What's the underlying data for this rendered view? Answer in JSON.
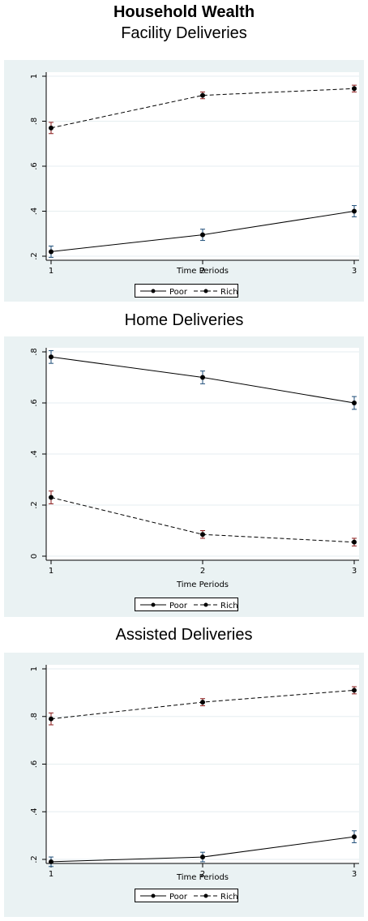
{
  "main_title": "Household Wealth",
  "chart_data": [
    {
      "type": "line",
      "title": "Facility Deliveries",
      "xlabel": "Time Periods",
      "ylabel": "",
      "x": [
        1,
        2,
        3
      ],
      "xlim": [
        1,
        3
      ],
      "ylim": [
        0.2,
        1.0
      ],
      "yticks": [
        0.2,
        0.4,
        0.6,
        0.8,
        1.0
      ],
      "ytick_labels": [
        ".2",
        ".4",
        ".6",
        ".8",
        "1"
      ],
      "xtick_labels": [
        "1",
        "2",
        "3"
      ],
      "grid": true,
      "legend_position": "bottom",
      "series": [
        {
          "name": "Poor",
          "style": "solid",
          "values": [
            0.22,
            0.295,
            0.4
          ],
          "ci": [
            [
              0.195,
              0.245
            ],
            [
              0.27,
              0.32
            ],
            [
              0.375,
              0.425
            ]
          ]
        },
        {
          "name": "Rich",
          "style": "dashed",
          "values": [
            0.77,
            0.915,
            0.945
          ],
          "ci": [
            [
              0.745,
              0.795
            ],
            [
              0.9,
              0.93
            ],
            [
              0.93,
              0.96
            ]
          ]
        }
      ]
    },
    {
      "type": "line",
      "title": "Home Deliveries",
      "xlabel": "Time Periods",
      "ylabel": "",
      "x": [
        1,
        2,
        3
      ],
      "xlim": [
        1,
        3
      ],
      "ylim": [
        0.0,
        0.8
      ],
      "yticks": [
        0.0,
        0.2,
        0.4,
        0.6,
        0.8
      ],
      "ytick_labels": [
        "0",
        ".2",
        ".4",
        ".6",
        ".8"
      ],
      "xtick_labels": [
        "1",
        "2",
        "3"
      ],
      "grid": true,
      "legend_position": "bottom",
      "series": [
        {
          "name": "Poor",
          "style": "solid",
          "values": [
            0.78,
            0.7,
            0.6
          ],
          "ci": [
            [
              0.755,
              0.805
            ],
            [
              0.675,
              0.725
            ],
            [
              0.575,
              0.625
            ]
          ]
        },
        {
          "name": "Rich",
          "style": "dashed",
          "values": [
            0.23,
            0.085,
            0.055
          ],
          "ci": [
            [
              0.205,
              0.255
            ],
            [
              0.07,
              0.1
            ],
            [
              0.04,
              0.07
            ]
          ]
        }
      ]
    },
    {
      "type": "line",
      "title": "Assisted Deliveries",
      "xlabel": "Time Periods",
      "ylabel": "",
      "x": [
        1,
        2,
        3
      ],
      "xlim": [
        1,
        3
      ],
      "ylim": [
        0.2,
        1.0
      ],
      "yticks": [
        0.2,
        0.4,
        0.6,
        0.8,
        1.0
      ],
      "ytick_labels": [
        ".2",
        ".4",
        ".6",
        ".8",
        "1"
      ],
      "xtick_labels": [
        "1",
        "2",
        "3"
      ],
      "grid": true,
      "legend_position": "bottom",
      "series": [
        {
          "name": "Poor",
          "style": "solid",
          "values": [
            0.19,
            0.21,
            0.295
          ],
          "ci": [
            [
              0.17,
              0.21
            ],
            [
              0.19,
              0.23
            ],
            [
              0.27,
              0.32
            ]
          ]
        },
        {
          "name": "Rich",
          "style": "dashed",
          "values": [
            0.79,
            0.86,
            0.91
          ],
          "ci": [
            [
              0.765,
              0.815
            ],
            [
              0.845,
              0.875
            ],
            [
              0.895,
              0.925
            ]
          ]
        }
      ]
    }
  ],
  "colors": {
    "panel_background": "#eaf2f3",
    "plot_background": "#ffffff",
    "line": "#000000",
    "error_bar_poor": "#1f4e79",
    "error_bar_rich": "#8b1a1a",
    "grid": "#e6eef0"
  }
}
